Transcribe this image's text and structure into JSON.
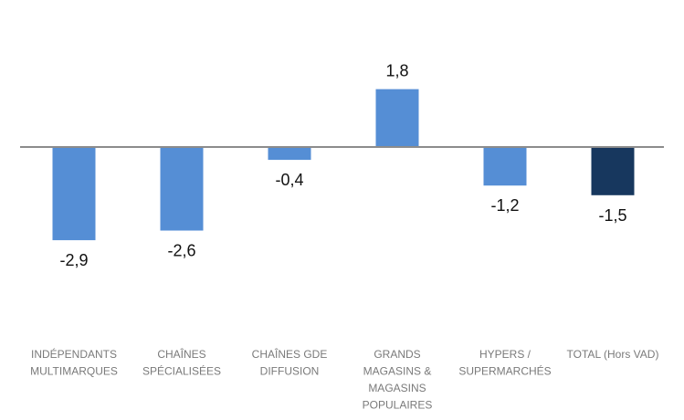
{
  "chart_data": {
    "type": "bar",
    "title": "",
    "xlabel": "",
    "ylabel": "",
    "categories": [
      [
        "INDÉPENDANTS",
        "MULTIMARQUES"
      ],
      [
        "CHAÎNES",
        "SPÉCIALISÉES"
      ],
      [
        "CHAÎNES GDE",
        "DIFFUSION"
      ],
      [
        "GRANDS",
        "MAGASINS &",
        "MAGASINS",
        "POPULAIRES"
      ],
      [
        "HYPERS /",
        "SUPERMARCHÉS"
      ],
      [
        "TOTAL (Hors VAD)"
      ]
    ],
    "values": [
      -2.9,
      -2.6,
      -0.4,
      1.8,
      -1.2,
      -1.5
    ],
    "value_labels": [
      "-2,9",
      "-2,6",
      "-0,4",
      "1,8",
      "-1,2",
      "-1,5"
    ],
    "colors": [
      "#558ed5",
      "#558ed5",
      "#558ed5",
      "#558ed5",
      "#558ed5",
      "#17375e"
    ],
    "baseline_color": "#8c8c8c",
    "grid": false,
    "legend": "none"
  }
}
